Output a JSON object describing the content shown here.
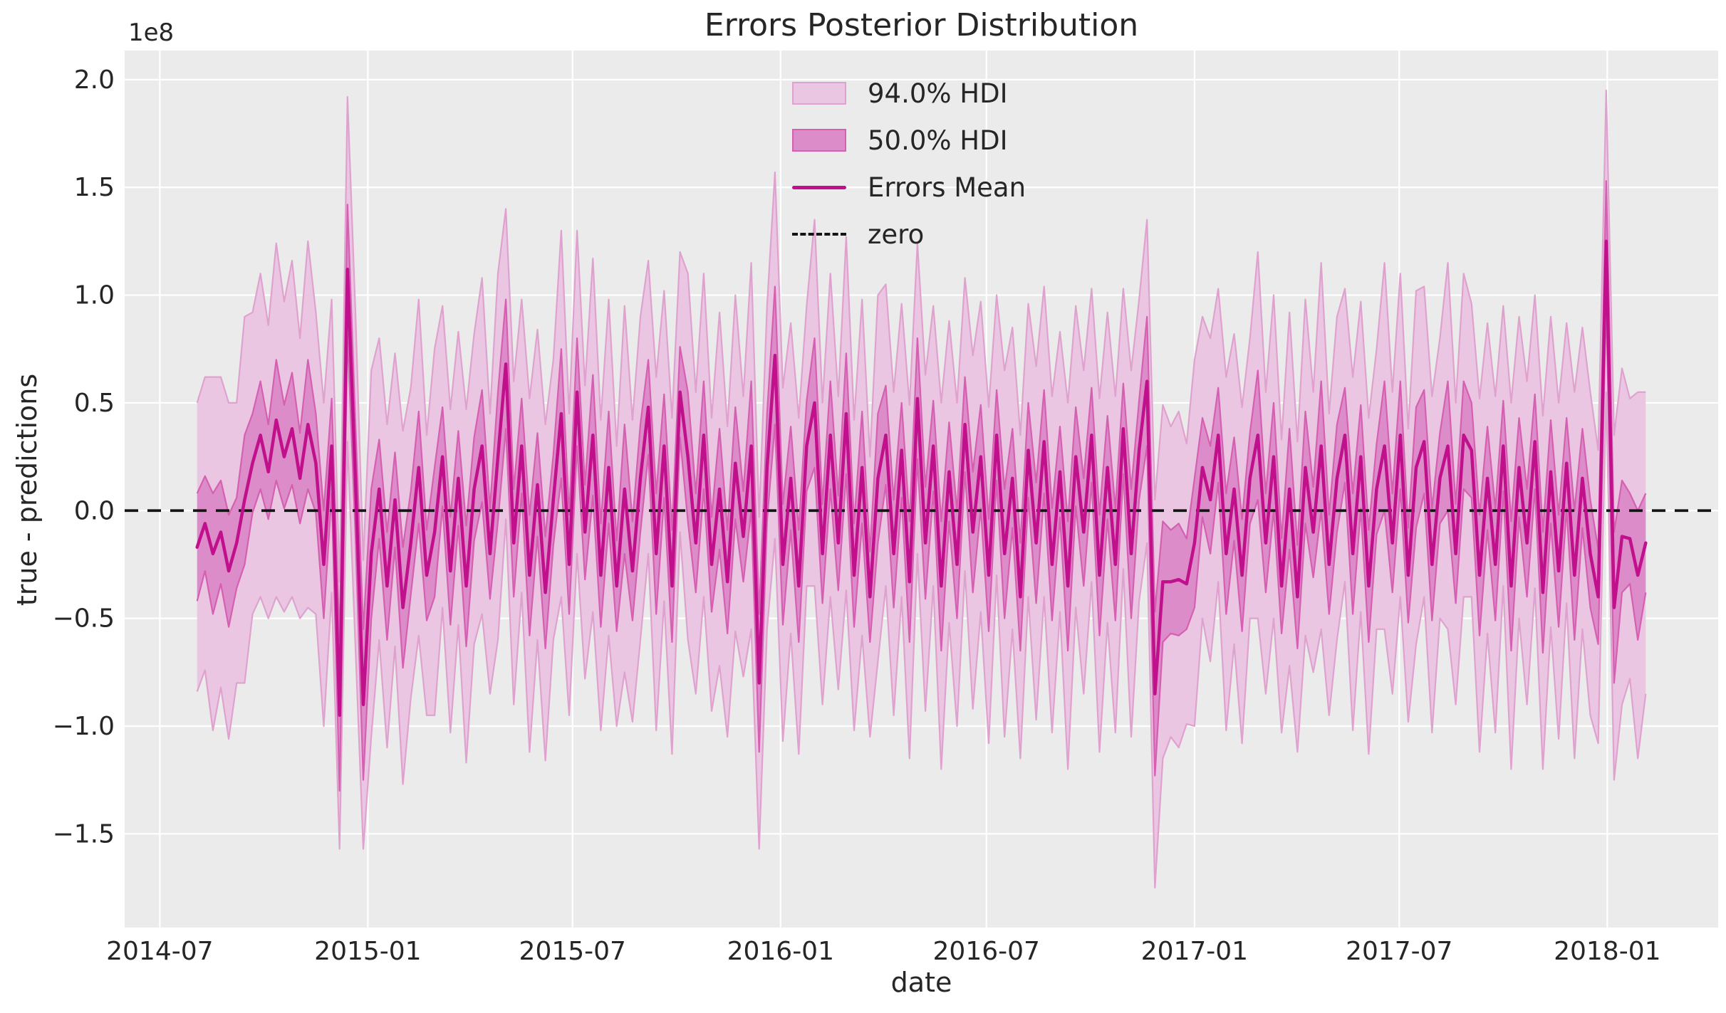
{
  "chart_data": {
    "type": "area",
    "title": "Errors Posterior Distribution",
    "xlabel": "date",
    "ylabel": "true - predictions",
    "y_offset_text": "1e8",
    "y_unit_multiplier": 100000000.0,
    "grid": true,
    "legend_position": "upper center",
    "ylim": [
      -1.935,
      2.135
    ],
    "xlim_index": [
      -9.15,
      192.15
    ],
    "yticks": [
      -1.5,
      -1.0,
      -0.5,
      0.0,
      0.5,
      1.0,
      1.5,
      2.0
    ],
    "ytick_labels": [
      "−1.5",
      "−1.0",
      "−0.5",
      "0.0",
      "0.5",
      "1.0",
      "1.5",
      "2.0"
    ],
    "x_start_date": "2014-08-03",
    "x_step_days": 7,
    "xticks": [
      {
        "label": "2014-07",
        "index": -4.71
      },
      {
        "label": "2015-01",
        "index": 21.57
      },
      {
        "label": "2015-07",
        "index": 47.43
      },
      {
        "label": "2016-01",
        "index": 73.71
      },
      {
        "label": "2016-07",
        "index": 99.71
      },
      {
        "label": "2017-01",
        "index": 126.0
      },
      {
        "label": "2017-07",
        "index": 151.86
      },
      {
        "label": "2018-01",
        "index": 178.14
      }
    ],
    "legend": [
      {
        "label": "94.0% HDI",
        "type": "patch",
        "fill": "#eac6e2",
        "edge": "#dfa2cf"
      },
      {
        "label": "50.0% HDI",
        "type": "patch",
        "fill": "#dc8cc8",
        "edge": "#d560b2"
      },
      {
        "label": "Errors Mean",
        "type": "line",
        "color": "#c0108c"
      },
      {
        "label": "zero",
        "type": "dashed-line",
        "color": "#141414"
      }
    ],
    "colors": {
      "figure_bg": "#ffffff",
      "axes_bg": "#ebebeb",
      "grid": "#ffffff",
      "band94_fill": "#eac6e2",
      "band94_edge": "#dfa2cf",
      "band50_fill": "#dc8cc8",
      "band50_edge": "#d560b2",
      "mean_line": "#c0108c",
      "zero_line": "#141414",
      "text": "#262626"
    },
    "zero_reference": 0,
    "series": {
      "mean": [
        -0.17,
        -0.06,
        -0.2,
        -0.1,
        -0.28,
        -0.15,
        0.05,
        0.22,
        0.35,
        0.18,
        0.42,
        0.25,
        0.38,
        0.15,
        0.4,
        0.22,
        -0.25,
        0.3,
        -0.95,
        1.12,
        0.15,
        -0.9,
        -0.2,
        0.1,
        -0.35,
        0.05,
        -0.45,
        -0.15,
        0.2,
        -0.3,
        -0.1,
        0.25,
        -0.28,
        0.15,
        -0.35,
        0.1,
        0.3,
        -0.2,
        0.25,
        0.68,
        -0.15,
        0.3,
        -0.3,
        0.12,
        -0.38,
        0.05,
        0.45,
        -0.25,
        0.55,
        -0.1,
        0.35,
        -0.3,
        0.2,
        -0.35,
        0.1,
        -0.28,
        0.15,
        0.48,
        -0.2,
        0.3,
        -0.35,
        0.55,
        0.25,
        -0.15,
        0.35,
        -0.25,
        0.1,
        -0.33,
        0.22,
        -0.12,
        0.3,
        -0.8,
        0.2,
        0.72,
        -0.25,
        0.15,
        -0.35,
        0.3,
        0.5,
        -0.2,
        0.35,
        -0.15,
        0.45,
        -0.3,
        0.2,
        -0.4,
        0.15,
        0.35,
        -0.2,
        0.28,
        -0.33,
        0.52,
        -0.15,
        0.3,
        -0.35,
        0.18,
        -0.25,
        0.4,
        -0.1,
        0.25,
        -0.3,
        0.35,
        -0.2,
        0.15,
        -0.4,
        0.28,
        -0.15,
        0.32,
        -0.25,
        0.18,
        -0.35,
        0.25,
        -0.1,
        0.35,
        -0.3,
        0.2,
        -0.25,
        0.38,
        -0.2,
        0.28,
        0.6,
        -0.85,
        -0.33,
        -0.33,
        -0.32,
        -0.34,
        -0.15,
        0.2,
        0.05,
        0.35,
        -0.2,
        0.1,
        -0.3,
        0.15,
        0.35,
        -0.15,
        0.25,
        -0.35,
        0.1,
        -0.4,
        0.2,
        -0.1,
        0.3,
        -0.25,
        0.15,
        0.35,
        -0.2,
        0.25,
        -0.35,
        0.1,
        0.3,
        -0.15,
        0.35,
        -0.3,
        0.2,
        0.32,
        -0.25,
        0.15,
        0.3,
        -0.2,
        0.35,
        0.28,
        -0.3,
        0.15,
        -0.25,
        0.3,
        -0.35,
        0.2,
        -0.15,
        0.32,
        -0.38,
        0.18,
        -0.28,
        0.22,
        -0.3,
        0.15,
        -0.2,
        -0.4,
        1.25,
        -0.45,
        -0.12,
        -0.13,
        -0.3,
        -0.15
      ],
      "hdi50_half_width": [
        0.25,
        0.22,
        0.28,
        0.24,
        0.26,
        0.21,
        0.3,
        0.23,
        0.25,
        0.22,
        0.28,
        0.24,
        0.26,
        0.21,
        0.3,
        0.23,
        0.25,
        0.22,
        0.35,
        0.3,
        0.26,
        0.35,
        0.3,
        0.23,
        0.25,
        0.22,
        0.28,
        0.24,
        0.26,
        0.21,
        0.3,
        0.23,
        0.25,
        0.22,
        0.28,
        0.24,
        0.26,
        0.21,
        0.3,
        0.3,
        0.25,
        0.22,
        0.28,
        0.24,
        0.26,
        0.21,
        0.3,
        0.23,
        0.25,
        0.22,
        0.28,
        0.24,
        0.26,
        0.21,
        0.3,
        0.23,
        0.25,
        0.22,
        0.28,
        0.24,
        0.26,
        0.21,
        0.3,
        0.23,
        0.25,
        0.22,
        0.28,
        0.24,
        0.26,
        0.21,
        0.3,
        0.32,
        0.25,
        0.32,
        0.28,
        0.24,
        0.26,
        0.21,
        0.3,
        0.23,
        0.25,
        0.22,
        0.28,
        0.24,
        0.26,
        0.21,
        0.3,
        0.23,
        0.25,
        0.22,
        0.28,
        0.28,
        0.26,
        0.21,
        0.3,
        0.23,
        0.25,
        0.22,
        0.28,
        0.24,
        0.26,
        0.21,
        0.3,
        0.23,
        0.25,
        0.22,
        0.28,
        0.24,
        0.26,
        0.21,
        0.3,
        0.23,
        0.25,
        0.22,
        0.28,
        0.24,
        0.26,
        0.21,
        0.3,
        0.23,
        0.3,
        0.38,
        0.28,
        0.24,
        0.26,
        0.21,
        0.3,
        0.23,
        0.25,
        0.22,
        0.28,
        0.24,
        0.26,
        0.21,
        0.3,
        0.23,
        0.25,
        0.22,
        0.28,
        0.24,
        0.26,
        0.21,
        0.3,
        0.23,
        0.25,
        0.22,
        0.28,
        0.24,
        0.26,
        0.21,
        0.3,
        0.23,
        0.25,
        0.22,
        0.28,
        0.24,
        0.26,
        0.21,
        0.3,
        0.23,
        0.25,
        0.22,
        0.28,
        0.24,
        0.26,
        0.21,
        0.3,
        0.23,
        0.25,
        0.22,
        0.28,
        0.24,
        0.26,
        0.21,
        0.3,
        0.23,
        0.25,
        0.22,
        0.28,
        0.35,
        0.26,
        0.21,
        0.3,
        0.23
      ],
      "hdi94_half_width": [
        0.67,
        0.68,
        0.82,
        0.72,
        0.78,
        0.65,
        0.85,
        0.7,
        0.75,
        0.68,
        0.82,
        0.72,
        0.78,
        0.65,
        0.85,
        0.7,
        0.75,
        0.68,
        0.62,
        0.8,
        0.78,
        0.67,
        0.85,
        0.7,
        0.75,
        0.68,
        0.82,
        0.72,
        0.78,
        0.65,
        0.85,
        0.7,
        0.75,
        0.68,
        0.82,
        0.72,
        0.78,
        0.65,
        0.85,
        0.72,
        0.75,
        0.68,
        0.82,
        0.72,
        0.78,
        0.65,
        0.85,
        0.7,
        0.75,
        0.68,
        0.82,
        0.72,
        0.78,
        0.65,
        0.85,
        0.7,
        0.75,
        0.68,
        0.82,
        0.72,
        0.78,
        0.65,
        0.85,
        0.7,
        0.75,
        0.68,
        0.82,
        0.72,
        0.78,
        0.65,
        0.85,
        0.77,
        0.75,
        0.85,
        0.82,
        0.72,
        0.78,
        0.65,
        0.85,
        0.7,
        0.75,
        0.68,
        0.82,
        0.72,
        0.78,
        0.65,
        0.85,
        0.7,
        0.75,
        0.68,
        0.82,
        0.72,
        0.78,
        0.65,
        0.85,
        0.7,
        0.75,
        0.68,
        0.82,
        0.72,
        0.78,
        0.65,
        0.85,
        0.7,
        0.75,
        0.68,
        0.82,
        0.72,
        0.78,
        0.65,
        0.85,
        0.7,
        0.75,
        0.68,
        0.82,
        0.72,
        0.78,
        0.65,
        0.85,
        0.7,
        0.75,
        0.9,
        0.82,
        0.72,
        0.78,
        0.65,
        0.85,
        0.7,
        0.75,
        0.68,
        0.82,
        0.72,
        0.78,
        0.65,
        0.85,
        0.7,
        0.75,
        0.68,
        0.82,
        0.72,
        0.78,
        0.65,
        0.85,
        0.7,
        0.75,
        0.68,
        0.82,
        0.72,
        0.78,
        0.65,
        0.85,
        0.7,
        0.75,
        0.68,
        0.82,
        0.72,
        0.78,
        0.65,
        0.85,
        0.7,
        0.75,
        0.68,
        0.82,
        0.72,
        0.78,
        0.65,
        0.85,
        0.7,
        0.75,
        0.68,
        0.82,
        0.72,
        0.78,
        0.65,
        0.85,
        0.7,
        0.75,
        0.68,
        0.7,
        0.8,
        0.78,
        0.65,
        0.85,
        0.7
      ]
    }
  }
}
